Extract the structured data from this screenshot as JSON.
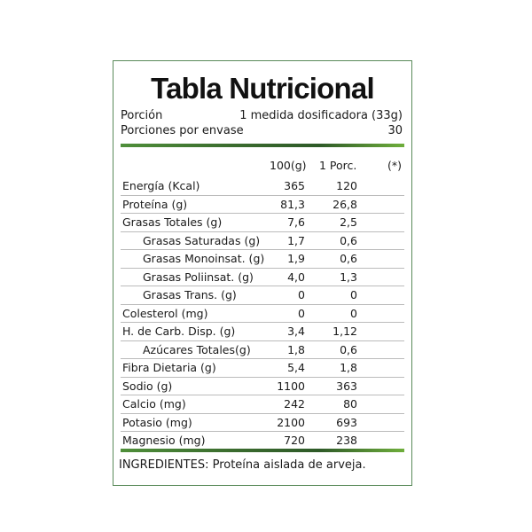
{
  "title": "Tabla Nutricional",
  "portion": {
    "label": "Porción",
    "value": "1 medida dosificadora (33g)"
  },
  "servings": {
    "label": "Porciones por envase",
    "value": "30"
  },
  "headers": {
    "per100": "100(g)",
    "perPortion": "1 Porc.",
    "pct": "(*)"
  },
  "rows": [
    {
      "label": "Energía (Kcal)",
      "per100": "365",
      "perPortion": "120",
      "indent": false
    },
    {
      "label": "Proteína (g)",
      "per100": "81,3",
      "perPortion": "26,8",
      "indent": false
    },
    {
      "label": "Grasas Totales (g)",
      "per100": "7,6",
      "perPortion": "2,5",
      "indent": false
    },
    {
      "label": "Grasas Saturadas (g)",
      "per100": "1,7",
      "perPortion": "0,6",
      "indent": true
    },
    {
      "label": "Grasas Monoinsat. (g)",
      "per100": "1,9",
      "perPortion": "0,6",
      "indent": true
    },
    {
      "label": "Grasas Poliinsat. (g)",
      "per100": "4,0",
      "perPortion": "1,3",
      "indent": true
    },
    {
      "label": "Grasas Trans. (g)",
      "per100": "0",
      "perPortion": "0",
      "indent": true
    },
    {
      "label": "Colesterol (mg)",
      "per100": "0",
      "perPortion": "0",
      "indent": false
    },
    {
      "label": "H. de Carb. Disp. (g)",
      "per100": "3,4",
      "perPortion": "1,12",
      "indent": false
    },
    {
      "label": "Azúcares Totales(g)",
      "per100": "1,8",
      "perPortion": "0,6",
      "indent": true
    },
    {
      "label": "Fibra Dietaria (g)",
      "per100": "5,4",
      "perPortion": "1,8",
      "indent": false
    },
    {
      "label": "Sodio (g)",
      "per100": "1100",
      "perPortion": "363",
      "indent": false
    },
    {
      "label": "Calcio (mg)",
      "per100": "242",
      "perPortion": "80",
      "indent": false
    },
    {
      "label": "Potasio (mg)",
      "per100": "2100",
      "perPortion": "693",
      "indent": false
    },
    {
      "label": "Magnesio (mg)",
      "per100": "720",
      "perPortion": "238",
      "indent": false
    }
  ],
  "ingredients": "INGREDIENTES: Proteína aislada de arveja.",
  "colors": {
    "border": "#5a8a5a",
    "bar": "#3a6b2e"
  }
}
